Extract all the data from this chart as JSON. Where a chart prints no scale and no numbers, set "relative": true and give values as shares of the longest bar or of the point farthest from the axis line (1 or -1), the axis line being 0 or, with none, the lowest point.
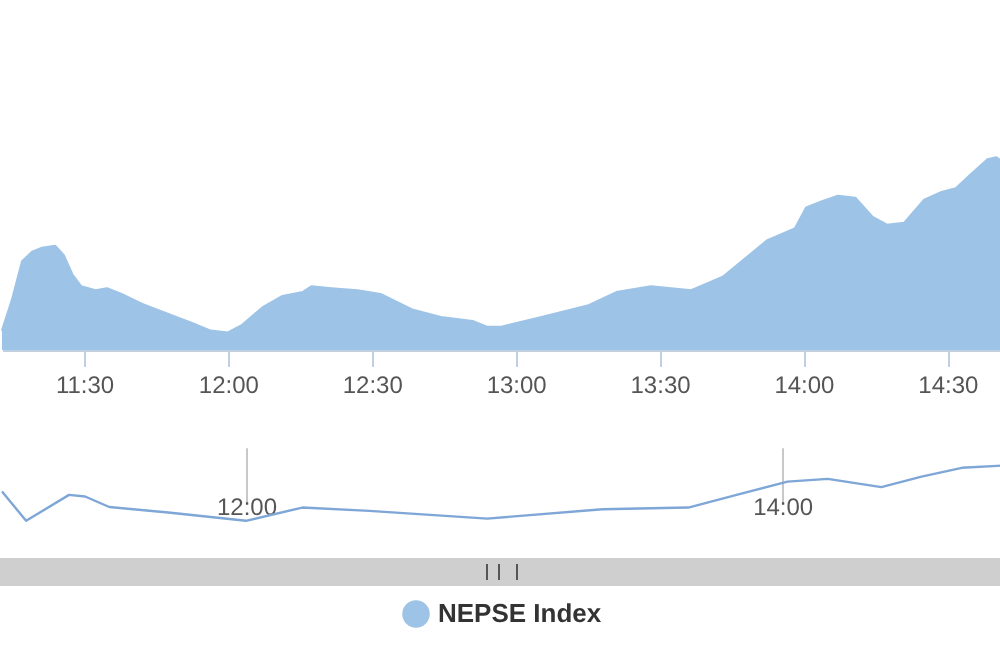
{
  "chart_data": [
    {
      "type": "area",
      "relative": true,
      "legend": "bottom",
      "xlim": [
        11.215,
        14.69
      ],
      "xticks": [
        {
          "value": 11.5,
          "label": "11:30"
        },
        {
          "value": 12,
          "label": "12:00"
        },
        {
          "value": 12.5,
          "label": "12:30"
        },
        {
          "value": 13,
          "label": "13:00"
        },
        {
          "value": 13.5,
          "label": "13:30"
        },
        {
          "value": 14,
          "label": "14:00"
        },
        {
          "value": 14.5,
          "label": "14:30"
        }
      ],
      "x": [
        11.215,
        11.25,
        11.285,
        11.32,
        11.354,
        11.4,
        11.43,
        11.46,
        11.49,
        11.54,
        11.58,
        11.63,
        11.7,
        11.77,
        11.875,
        11.94,
        12.0,
        12.05,
        12.12,
        12.19,
        12.26,
        12.29,
        12.36,
        12.45,
        12.53,
        12.64,
        12.74,
        12.85,
        12.9,
        12.95,
        13.09,
        13.25,
        13.35,
        13.47,
        13.61,
        13.72,
        13.81,
        13.875,
        13.97,
        14.01,
        14.06,
        14.12,
        14.18,
        14.24,
        14.29,
        14.35,
        14.42,
        14.48,
        14.53,
        14.58,
        14.64,
        14.67,
        14.69
      ],
      "series": [
        {
          "name": "NEPSE Index",
          "color": "#9dc3e6",
          "values": [
            0.1,
            0.26,
            0.46,
            0.51,
            0.53,
            0.54,
            0.49,
            0.39,
            0.33,
            0.31,
            0.32,
            0.29,
            0.24,
            0.2,
            0.14,
            0.1,
            0.09,
            0.13,
            0.22,
            0.28,
            0.3,
            0.33,
            0.32,
            0.31,
            0.29,
            0.21,
            0.17,
            0.15,
            0.12,
            0.12,
            0.17,
            0.23,
            0.3,
            0.33,
            0.31,
            0.38,
            0.49,
            0.57,
            0.63,
            0.74,
            0.77,
            0.8,
            0.79,
            0.69,
            0.65,
            0.66,
            0.78,
            0.82,
            0.84,
            0.91,
            0.99,
            1.0,
            0.98
          ]
        }
      ]
    },
    {
      "type": "line",
      "relative": true,
      "grid": "x",
      "xlim": [
        11.09,
        14.82
      ],
      "xticks": [
        {
          "value": 12,
          "label": "12:00"
        },
        {
          "value": 14,
          "label": "14:00"
        }
      ],
      "x": [
        11.09,
        11.18,
        11.34,
        11.4,
        11.49,
        11.71,
        12.0,
        12.21,
        12.46,
        12.9,
        13.33,
        13.65,
        13.83,
        14.02,
        14.17,
        14.37,
        14.52,
        14.67,
        14.82
      ],
      "series": [
        {
          "color": "#7ea6d6",
          "values": [
            0.53,
            0.0,
            0.47,
            0.44,
            0.25,
            0.15,
            0.0,
            0.24,
            0.18,
            0.04,
            0.21,
            0.24,
            0.47,
            0.71,
            0.76,
            0.61,
            0.8,
            0.96,
            1.0
          ]
        }
      ]
    }
  ]
}
